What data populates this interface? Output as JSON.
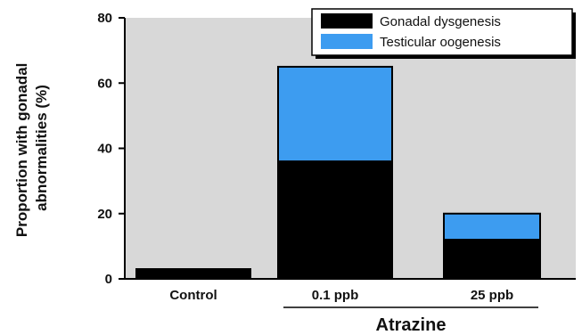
{
  "chart_data": {
    "type": "bar",
    "stacked": true,
    "categories": [
      "Control",
      "0.1 ppb",
      "25 ppb"
    ],
    "series": [
      {
        "name": "Gonadal dysgenesis",
        "values": [
          3,
          36,
          12
        ],
        "color": "#000000"
      },
      {
        "name": "Testicular oogenesis",
        "values": [
          0,
          29,
          8
        ],
        "color": "#3d9cf0"
      }
    ],
    "ylabel_lines": [
      "Proportion with gonadal",
      "abnormalities (%)"
    ],
    "group_label": "Atrazine",
    "ylim": [
      0,
      80
    ],
    "yticks": [
      0,
      20,
      40,
      60,
      80
    ],
    "grid": false,
    "plot_background": "#d8d8d8",
    "legend_position": "top-right"
  }
}
